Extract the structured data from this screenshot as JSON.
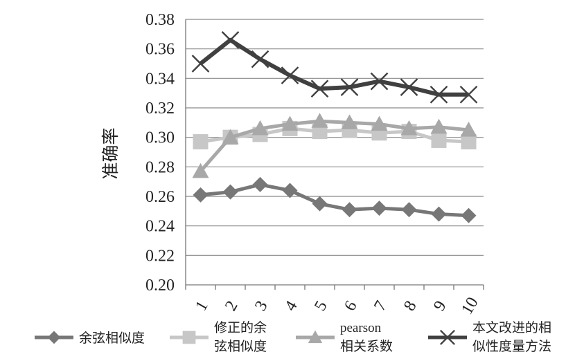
{
  "chart_data": {
    "type": "line",
    "ylabel": "准确率",
    "xlabel": "",
    "ylim": [
      0.2,
      0.38
    ],
    "y_ticks": [
      "0.20",
      "0.22",
      "0.24",
      "0.26",
      "0.28",
      "0.30",
      "0.32",
      "0.34",
      "0.36",
      "0.38"
    ],
    "categories": [
      "1",
      "2",
      "3",
      "4",
      "5",
      "6",
      "7",
      "8",
      "9",
      "10"
    ],
    "grid": "horizontal",
    "legend_position": "bottom",
    "series": [
      {
        "name_lines": [
          "余弦相似度"
        ],
        "marker": "diamond",
        "color": "#777777",
        "values": [
          0.261,
          0.263,
          0.268,
          0.264,
          0.255,
          0.251,
          0.252,
          0.251,
          0.248,
          0.247
        ]
      },
      {
        "name_lines": [
          "修正的余",
          "弦相似度"
        ],
        "marker": "square",
        "color": "#c7c7c7",
        "values": [
          0.297,
          0.3,
          0.302,
          0.306,
          0.304,
          0.305,
          0.303,
          0.304,
          0.298,
          0.297
        ]
      },
      {
        "name_lines": [
          "pearson",
          "相关系数"
        ],
        "marker": "triangle",
        "color": "#a8a8a8",
        "values": [
          0.277,
          0.3,
          0.306,
          0.309,
          0.311,
          0.31,
          0.309,
          0.306,
          0.307,
          0.305
        ]
      },
      {
        "name_lines": [
          "本文改进的相",
          "似性度量方法"
        ],
        "marker": "x",
        "color": "#404040",
        "values": [
          0.35,
          0.366,
          0.353,
          0.342,
          0.333,
          0.334,
          0.338,
          0.334,
          0.329,
          0.329
        ]
      }
    ]
  }
}
